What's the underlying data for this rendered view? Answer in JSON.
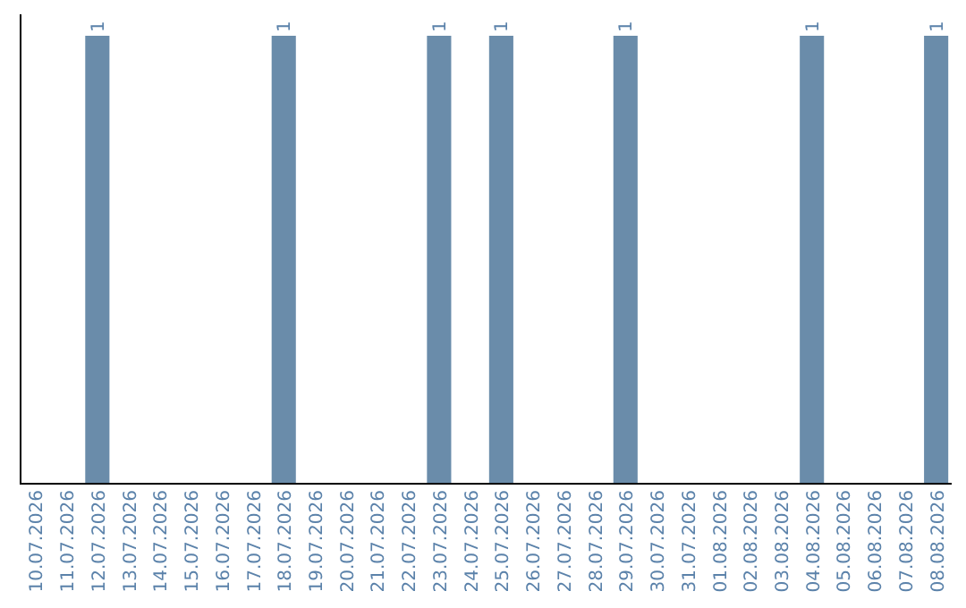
{
  "chart_data": {
    "type": "bar",
    "categories": [
      "10.07.2026",
      "11.07.2026",
      "12.07.2026",
      "13.07.2026",
      "14.07.2026",
      "15.07.2026",
      "16.07.2026",
      "17.07.2026",
      "18.07.2026",
      "19.07.2026",
      "20.07.2026",
      "21.07.2026",
      "22.07.2026",
      "23.07.2026",
      "24.07.2026",
      "25.07.2026",
      "26.07.2026",
      "27.07.2026",
      "28.07.2026",
      "29.07.2026",
      "30.07.2026",
      "31.07.2026",
      "01.08.2026",
      "02.08.2026",
      "03.08.2026",
      "04.08.2026",
      "05.08.2026",
      "06.08.2026",
      "07.08.2026",
      "08.08.2026"
    ],
    "values": [
      0,
      0,
      1,
      0,
      0,
      0,
      0,
      0,
      1,
      0,
      0,
      0,
      0,
      1,
      0,
      1,
      0,
      0,
      0,
      1,
      0,
      0,
      0,
      0,
      0,
      1,
      0,
      0,
      0,
      1
    ],
    "value_labels": [
      null,
      null,
      "1",
      null,
      null,
      null,
      null,
      null,
      "1",
      null,
      null,
      null,
      null,
      "1",
      null,
      "1",
      null,
      null,
      null,
      "1",
      null,
      null,
      null,
      null,
      null,
      "1",
      null,
      null,
      null,
      "1"
    ],
    "color": "#6a8caa",
    "tick_labels": "x"
  }
}
